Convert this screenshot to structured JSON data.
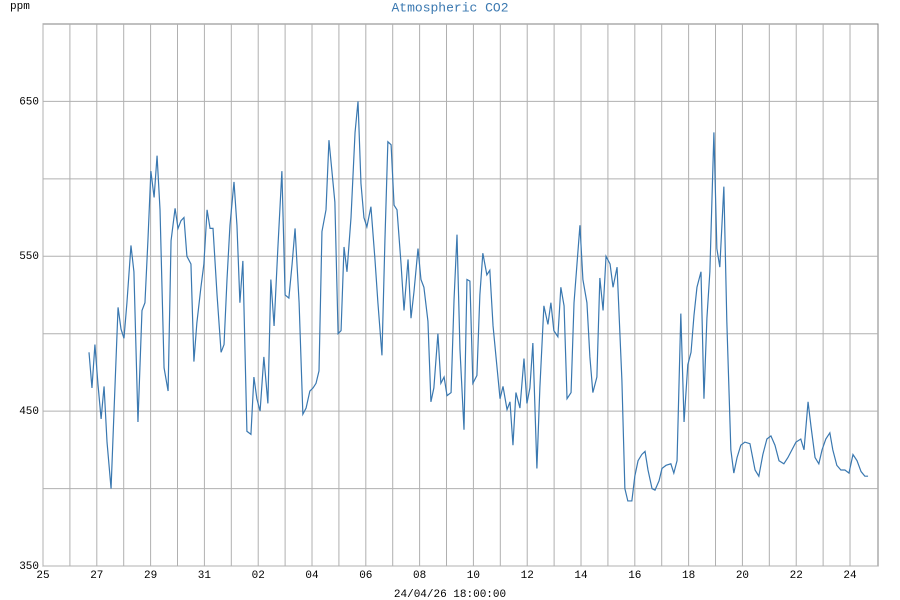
{
  "chart_data": {
    "type": "line",
    "title": "Atmospheric CO2",
    "y_label": "ppm",
    "x_label": "24/04/26 18:00:00",
    "x": [
      1.71,
      1.82,
      1.93,
      2.04,
      2.16,
      2.27,
      2.38,
      2.53,
      2.64,
      2.79,
      2.9,
      3.01,
      3.12,
      3.27,
      3.38,
      3.53,
      3.68,
      3.79,
      3.9,
      4.01,
      4.13,
      4.24,
      4.35,
      4.5,
      4.65,
      4.76,
      4.91,
      5.02,
      5.13,
      5.24,
      5.35,
      5.5,
      5.61,
      5.72,
      5.87,
      5.98,
      6.1,
      6.21,
      6.32,
      6.47,
      6.62,
      6.73,
      6.84,
      6.95,
      7.1,
      7.21,
      7.32,
      7.43,
      7.58,
      7.73,
      7.84,
      7.95,
      8.07,
      8.21,
      8.36,
      8.47,
      8.59,
      8.73,
      8.88,
      9.0,
      9.14,
      9.26,
      9.37,
      9.52,
      9.66,
      9.78,
      9.92,
      10.04,
      10.15,
      10.26,
      10.37,
      10.52,
      10.63,
      10.74,
      10.85,
      10.97,
      11.08,
      11.19,
      11.3,
      11.45,
      11.6,
      11.71,
      11.82,
      11.93,
      12.04,
      12.19,
      12.34,
      12.45,
      12.6,
      12.71,
      12.82,
      12.94,
      13.05,
      13.16,
      13.31,
      13.42,
      13.57,
      13.68,
      13.79,
      13.94,
      14.05,
      14.16,
      14.31,
      14.42,
      14.53,
      14.68,
      14.79,
      14.91,
      15.02,
      15.17,
      15.28,
      15.39,
      15.5,
      15.65,
      15.76,
      15.87,
      15.98,
      16.13,
      16.24,
      16.35,
      16.5,
      16.61,
      16.73,
      16.84,
      16.99,
      17.1,
      17.25,
      17.36,
      17.47,
      17.58,
      17.73,
      17.88,
      17.99,
      18.1,
      18.21,
      18.36,
      18.47,
      18.62,
      18.77,
      18.88,
      18.99,
      19.14,
      19.25,
      19.37,
      19.48,
      19.63,
      19.74,
      19.85,
      19.96,
      20.07,
      20.22,
      20.33,
      20.44,
      20.59,
      20.7,
      20.82,
      20.93,
      21.08,
      21.19,
      21.34,
      21.52,
      21.63,
      21.74,
      21.89,
      22.0,
      22.12,
      22.26,
      22.38,
      22.49,
      22.64,
      22.75,
      22.9,
      23.01,
      23.16,
      23.34,
      23.45,
      23.57,
      23.71,
      23.83,
      23.97,
      24.09,
      24.2,
      24.31,
      24.46,
      24.57,
      24.68,
      24.79,
      24.94,
      25.05,
      25.16,
      25.31,
      25.42,
      25.57,
      25.68,
      25.8,
      25.94,
      26.09,
      26.28,
      26.47,
      26.61,
      26.76,
      26.91,
      27.06,
      27.21,
      27.36,
      27.54,
      27.69,
      27.84,
      27.99,
      28.17,
      28.29,
      28.44,
      28.55,
      28.7,
      28.84,
      28.96,
      29.1,
      29.25,
      29.36,
      29.51,
      29.66,
      29.81,
      29.96,
      30.11,
      30.26,
      30.41,
      30.55,
      30.67
    ],
    "series": [
      {
        "name": "CO2",
        "color": "#3a78b0",
        "values": [
          488,
          465,
          493,
          468,
          445,
          466,
          430,
          400,
          450,
          517,
          503,
          497,
          520,
          557,
          540,
          443,
          515,
          520,
          560,
          605,
          588,
          615,
          580,
          478,
          463,
          560,
          581,
          568,
          573,
          575,
          550,
          545,
          482,
          507,
          530,
          545,
          580,
          568,
          568,
          525,
          488,
          493,
          535,
          570,
          598,
          570,
          520,
          547,
          437,
          435,
          472,
          458,
          450,
          485,
          455,
          535,
          505,
          555,
          605,
          525,
          523,
          545,
          568,
          520,
          448,
          452,
          463,
          465,
          468,
          476,
          566,
          580,
          625,
          605,
          585,
          500,
          502,
          556,
          540,
          575,
          630,
          650,
          597,
          575,
          569,
          582,
          548,
          520,
          486,
          560,
          624,
          622,
          583,
          580,
          545,
          515,
          548,
          510,
          527,
          555,
          535,
          530,
          508,
          456,
          465,
          500,
          468,
          472,
          460,
          462,
          522,
          564,
          490,
          438,
          535,
          534,
          468,
          473,
          525,
          552,
          538,
          541,
          505,
          485,
          458,
          466,
          451,
          456,
          428,
          462,
          452,
          484,
          455,
          465,
          494,
          413,
          465,
          518,
          506,
          520,
          502,
          498,
          530,
          518,
          458,
          462,
          520,
          545,
          570,
          535,
          520,
          485,
          462,
          472,
          536,
          515,
          550,
          545,
          530,
          543,
          470,
          400,
          392,
          392,
          408,
          418,
          422,
          424,
          412,
          400,
          399,
          405,
          413,
          415,
          416,
          410,
          418,
          513,
          443,
          480,
          488,
          512,
          530,
          540,
          458,
          510,
          540,
          630,
          555,
          543,
          595,
          508,
          425,
          410,
          420,
          428,
          430,
          429,
          412,
          408,
          422,
          432,
          434,
          428,
          418,
          416,
          420,
          425,
          430,
          432,
          425,
          456,
          440,
          420,
          416,
          425,
          432,
          436,
          425,
          415,
          412,
          412,
          410,
          422,
          418,
          411,
          408,
          408
        ]
      }
    ],
    "xlim": [
      0,
      31.04
    ],
    "xticks": [
      {
        "value": 0,
        "label": "25"
      },
      {
        "value": 2,
        "label": "27"
      },
      {
        "value": 4,
        "label": "29"
      },
      {
        "value": 6,
        "label": "31"
      },
      {
        "value": 8,
        "label": "02"
      },
      {
        "value": 10,
        "label": "04"
      },
      {
        "value": 12,
        "label": "06"
      },
      {
        "value": 14,
        "label": "08"
      },
      {
        "value": 16,
        "label": "10"
      },
      {
        "value": 18,
        "label": "12"
      },
      {
        "value": 20,
        "label": "14"
      },
      {
        "value": 22,
        "label": "16"
      },
      {
        "value": 24,
        "label": "18"
      },
      {
        "value": 26,
        "label": "20"
      },
      {
        "value": 28,
        "label": "22"
      },
      {
        "value": 30,
        "label": "24"
      }
    ],
    "xgrid": [
      1,
      3,
      5,
      7,
      9,
      11,
      13,
      15,
      17,
      19,
      21,
      23,
      25,
      27,
      29
    ],
    "ylim": [
      350,
      700
    ],
    "yticks": [
      350,
      450,
      550,
      650
    ],
    "ygrid": [
      400,
      500,
      600
    ],
    "grid": true
  }
}
